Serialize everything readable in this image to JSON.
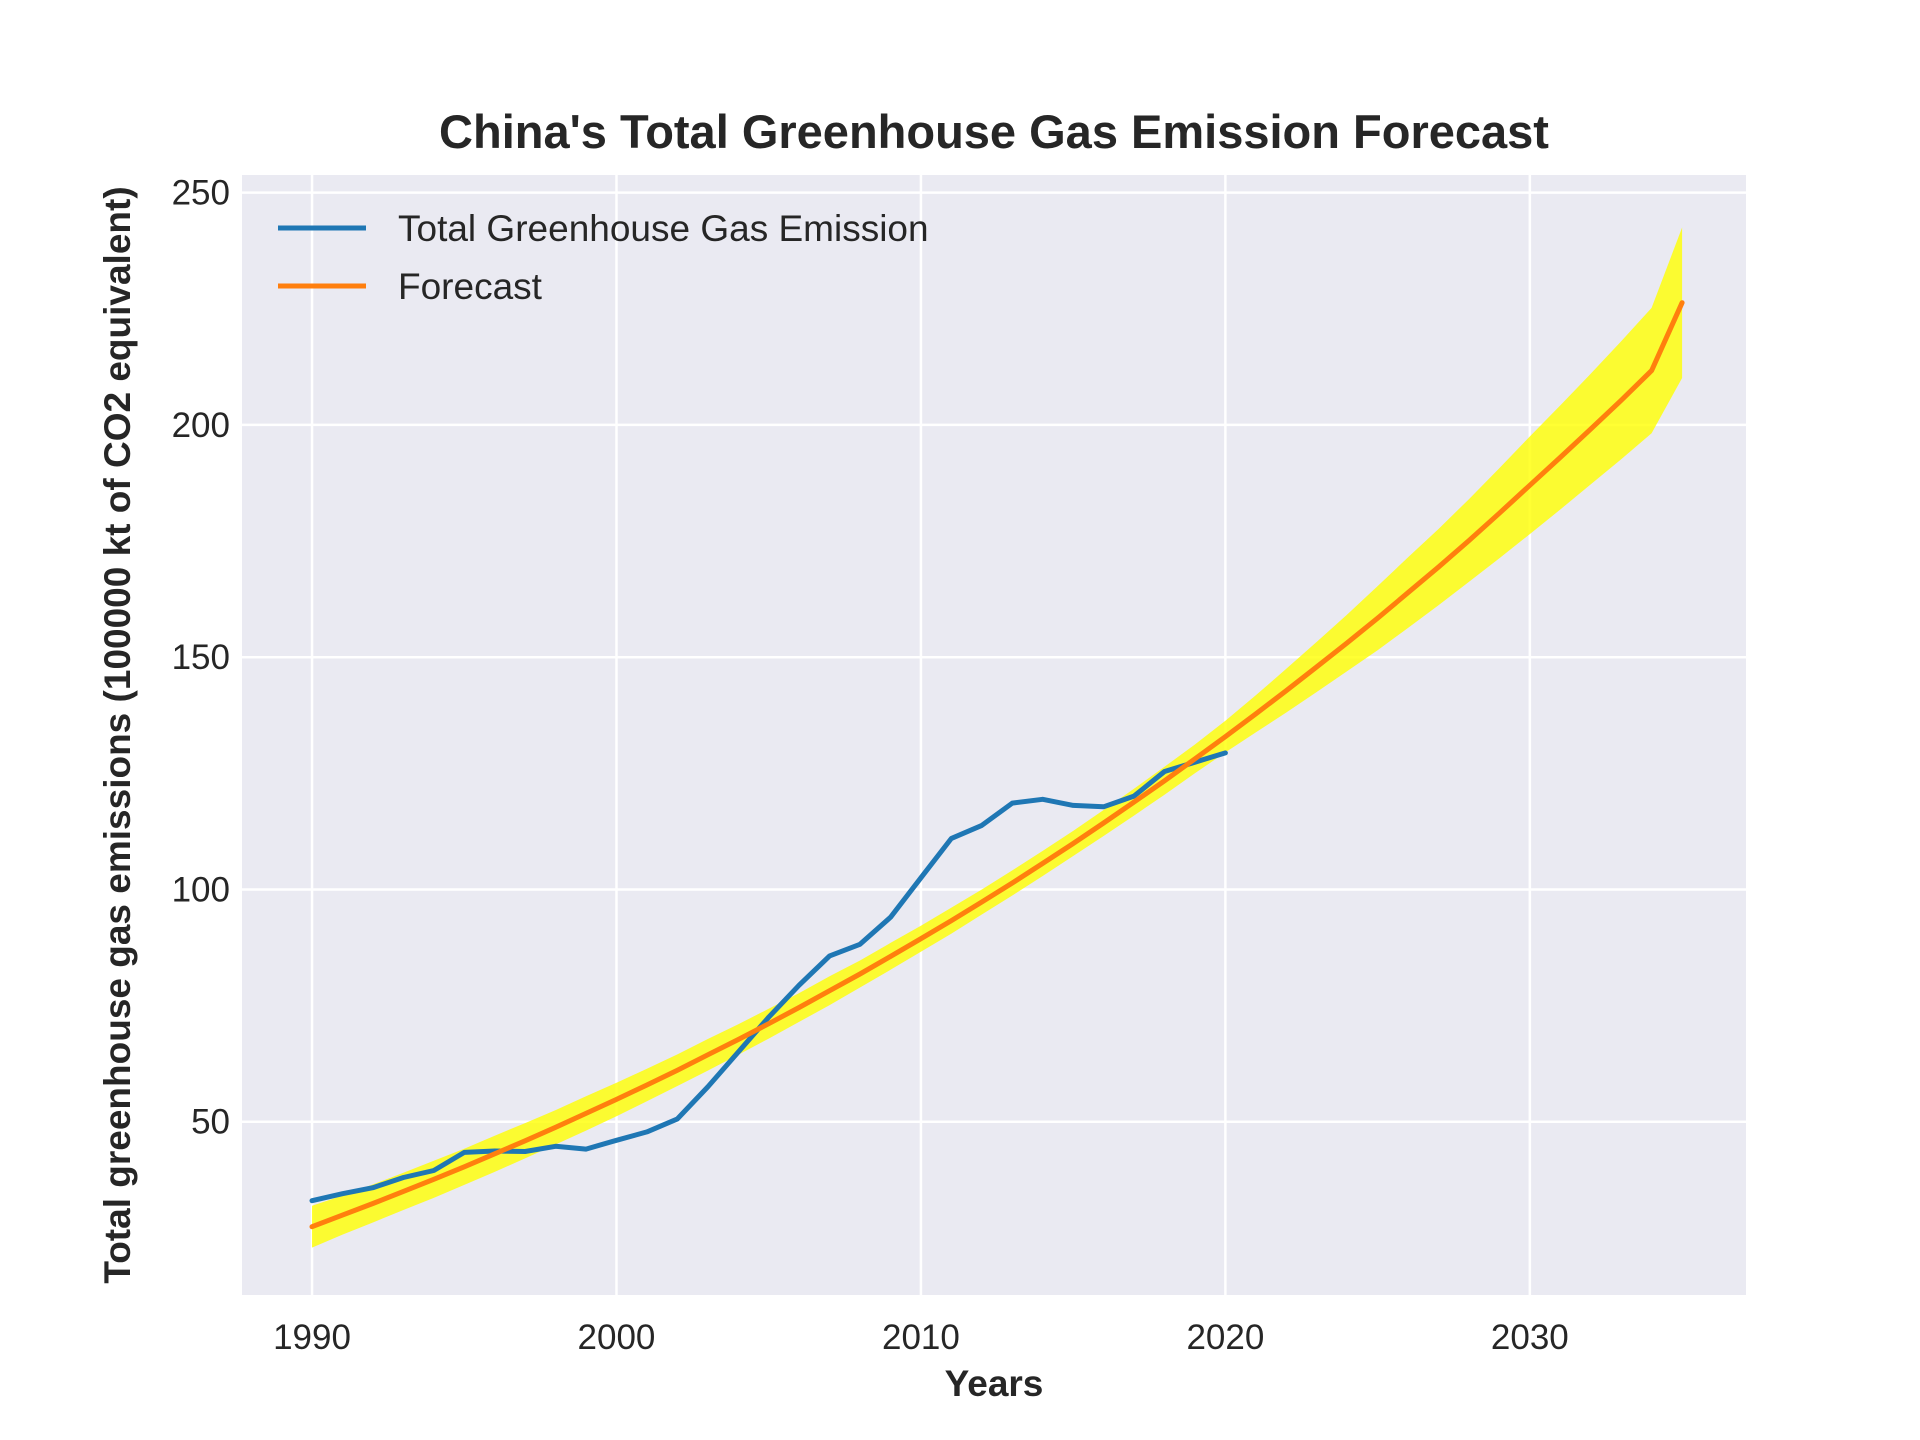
{
  "chart_data": {
    "type": "line",
    "title": "China's Total Greenhouse Gas Emission Forecast",
    "xlabel": "Years",
    "ylabel": "Total greenhouse gas emissions (100000 kt of CO2 equivalent)",
    "xlim": [
      1987.7,
      2037.1
    ],
    "ylim": [
      12.7,
      253.8
    ],
    "xticks": [
      1990,
      2000,
      2010,
      2020,
      2030
    ],
    "yticks": [
      50,
      100,
      150,
      200,
      250
    ],
    "grid": true,
    "legend_position": "upper-left",
    "background_color": "#eaeaf2",
    "series": [
      {
        "name": "Total Greenhouse Gas Emission",
        "color": "#1f77b4",
        "x": [
          1990,
          1991,
          1992,
          1993,
          1994,
          1995,
          1996,
          1997,
          1998,
          1999,
          2000,
          2001,
          2002,
          2003,
          2004,
          2005,
          2006,
          2007,
          2008,
          2009,
          2010,
          2011,
          2012,
          2013,
          2014,
          2015,
          2016,
          2017,
          2018,
          2019,
          2020
        ],
        "values": [
          33.0,
          34.5,
          35.8,
          38.0,
          39.5,
          43.4,
          43.7,
          43.6,
          44.7,
          44.1,
          46.0,
          47.8,
          50.6,
          57.5,
          65.0,
          72.5,
          79.4,
          85.7,
          88.2,
          94.0,
          102.5,
          111.0,
          113.8,
          118.6,
          119.4,
          118.1,
          117.8,
          120.1,
          125.4,
          127.4,
          129.4
        ]
      },
      {
        "name": "Forecast",
        "color": "#ff7f0e",
        "band_color": "#ffff00",
        "x": [
          1990,
          1991,
          1992,
          1993,
          1994,
          1995,
          1996,
          1997,
          1998,
          1999,
          2000,
          2001,
          2002,
          2003,
          2004,
          2005,
          2006,
          2007,
          2008,
          2009,
          2010,
          2011,
          2012,
          2013,
          2014,
          2015,
          2016,
          2017,
          2018,
          2019,
          2020,
          2021,
          2022,
          2023,
          2024,
          2025,
          2026,
          2027,
          2028,
          2029,
          2030,
          2031,
          2032,
          2033,
          2034,
          2035
        ],
        "values": [
          27.4,
          29.9,
          32.4,
          35.0,
          37.6,
          40.3,
          43.1,
          45.9,
          48.8,
          51.8,
          54.8,
          57.9,
          61.1,
          64.4,
          67.7,
          71.1,
          74.6,
          78.2,
          81.8,
          85.6,
          89.4,
          93.3,
          97.3,
          101.4,
          105.6,
          109.9,
          114.3,
          118.8,
          123.4,
          128.1,
          132.9,
          137.8,
          142.8,
          147.9,
          153.1,
          158.4,
          163.9,
          169.4,
          175.1,
          181.0,
          187.0,
          193.0,
          199.1,
          205.3,
          211.7,
          226.3
        ],
        "lower": [
          22.9,
          25.7,
          28.3,
          31.0,
          33.6,
          36.4,
          39.2,
          42.1,
          45.1,
          48.1,
          51.2,
          54.4,
          57.7,
          61.0,
          64.4,
          67.9,
          71.5,
          75.1,
          78.9,
          82.7,
          86.6,
          90.5,
          94.6,
          98.7,
          102.9,
          107.2,
          111.5,
          115.9,
          120.4,
          125.0,
          129.5,
          133.8,
          138.1,
          142.5,
          147.0,
          151.5,
          156.3,
          161.2,
          166.2,
          171.3,
          176.5,
          181.8,
          187.2,
          192.6,
          198.2,
          210.1
        ],
        "upper": [
          31.9,
          34.1,
          36.5,
          39.0,
          41.6,
          44.2,
          47.0,
          49.7,
          52.5,
          55.5,
          58.4,
          61.4,
          64.5,
          67.8,
          71.0,
          74.3,
          77.7,
          81.3,
          84.7,
          88.5,
          92.2,
          96.1,
          100.0,
          104.1,
          108.3,
          112.6,
          117.1,
          121.7,
          126.4,
          131.2,
          136.3,
          141.8,
          147.5,
          153.3,
          159.2,
          165.3,
          171.5,
          177.6,
          184.0,
          190.7,
          197.5,
          204.2,
          211.0,
          218.0,
          225.2,
          242.5
        ]
      }
    ]
  }
}
